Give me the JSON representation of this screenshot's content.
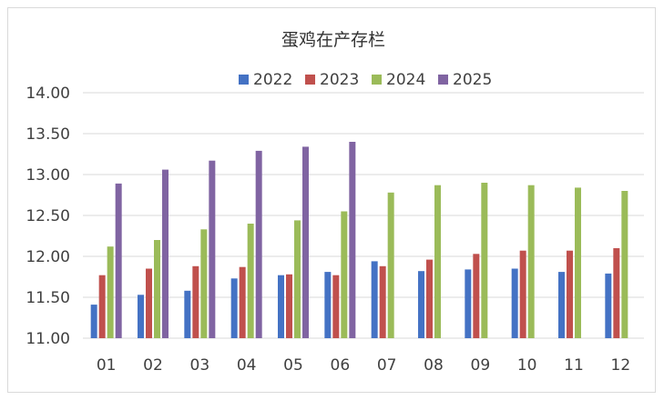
{
  "chart_data": {
    "type": "bar",
    "title": "蛋鸡在产存栏",
    "xlabel": "",
    "ylabel": "",
    "categories": [
      "01",
      "02",
      "03",
      "04",
      "05",
      "06",
      "07",
      "08",
      "09",
      "10",
      "11",
      "12"
    ],
    "ylim": [
      11.0,
      14.0
    ],
    "yticks": [
      "11.00",
      "11.50",
      "12.00",
      "12.50",
      "13.00",
      "13.50",
      "14.00"
    ],
    "grid": true,
    "legend_position": "top",
    "series": [
      {
        "name": "2022",
        "color": "#4472C4",
        "values": [
          11.41,
          11.53,
          11.58,
          11.73,
          11.77,
          11.81,
          11.94,
          11.82,
          11.84,
          11.85,
          11.81,
          11.79
        ]
      },
      {
        "name": "2023",
        "color": "#C0504D",
        "values": [
          11.77,
          11.85,
          11.88,
          11.87,
          11.78,
          11.77,
          11.88,
          11.96,
          12.03,
          12.07,
          12.07,
          12.1
        ]
      },
      {
        "name": "2024",
        "color": "#9BBB59",
        "values": [
          12.12,
          12.2,
          12.33,
          12.4,
          12.44,
          12.55,
          12.78,
          12.87,
          12.9,
          12.87,
          12.84,
          12.8
        ]
      },
      {
        "name": "2025",
        "color": "#8064A2",
        "values": [
          12.89,
          13.06,
          13.17,
          13.29,
          13.34,
          13.4,
          null,
          null,
          null,
          null,
          null,
          null
        ]
      }
    ]
  }
}
